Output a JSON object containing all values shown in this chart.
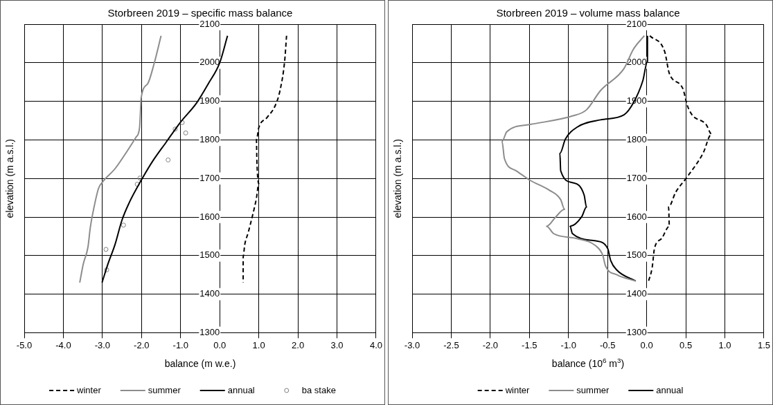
{
  "chart_data": [
    {
      "type": "line",
      "title": "Storbreen 2019 – specific mass balance",
      "xlabel": "balance (m w.e.)",
      "ylabel": "elevation (m a.s.l.)",
      "xlim": [
        -5,
        4
      ],
      "xticks": [
        {
          "value": -5,
          "label": "-5.0"
        },
        {
          "value": -4,
          "label": "-4.0"
        },
        {
          "value": -3,
          "label": "-3.0"
        },
        {
          "value": -2,
          "label": "-2.0"
        },
        {
          "value": -1,
          "label": "-1.0"
        },
        {
          "value": 0,
          "label": "0.0"
        },
        {
          "value": 1,
          "label": "1.0"
        },
        {
          "value": 2,
          "label": "2.0"
        },
        {
          "value": 3,
          "label": "3.0"
        },
        {
          "value": 4,
          "label": "4.0"
        }
      ],
      "ylim": [
        1300,
        2100
      ],
      "yticks": [
        1300,
        1400,
        1500,
        1600,
        1700,
        1800,
        1900,
        2000,
        2100
      ],
      "grid": true,
      "legend": "bottom",
      "marker": "none",
      "series": [
        {
          "name": "winter",
          "color": "#000000",
          "line_style": "dashed",
          "x": [
            1.71,
            1.66,
            1.54,
            1.42,
            1.21,
            1.0,
            0.94,
            0.95,
            1.0,
            0.94,
            0.84,
            0.73,
            0.64,
            0.6,
            0.6
          ],
          "values": [
            2070,
            2003,
            1927,
            1889,
            1858,
            1832,
            1801,
            1750,
            1687,
            1649,
            1604,
            1560,
            1528,
            1497,
            1430
          ]
        },
        {
          "name": "summer",
          "color": "#8c8c8c",
          "line_style": "solid",
          "x": [
            -1.5,
            -1.68,
            -1.84,
            -2.01,
            -2.02,
            -2.05,
            -2.14,
            -2.38,
            -2.68,
            -2.98,
            -3.1,
            -3.22,
            -3.31,
            -3.37,
            -3.49,
            -3.58
          ],
          "values": [
            2070,
            1997,
            1946,
            1908,
            1889,
            1832,
            1807,
            1769,
            1725,
            1693,
            1674,
            1623,
            1573,
            1522,
            1478,
            1430
          ]
        },
        {
          "name": "annual",
          "color": "#000000",
          "line_style": "solid",
          "x": [
            0.2,
            0.0,
            -0.29,
            -0.59,
            -1.01,
            -1.37,
            -1.72,
            -2.02,
            -2.32,
            -2.5,
            -2.68,
            -2.86,
            -3.01
          ],
          "values": [
            2070,
            2000,
            1946,
            1896,
            1845,
            1794,
            1744,
            1693,
            1636,
            1592,
            1528,
            1478,
            1430
          ]
        },
        {
          "name": "ba stake",
          "type": "scatter",
          "marker": "circle",
          "color": "#808080",
          "x": [
            -0.96,
            -1.14,
            -0.87,
            -1.32,
            -2.04,
            -2.11,
            -2.46,
            -2.91,
            -2.89
          ],
          "values": [
            1845,
            1828,
            1818,
            1748,
            1701,
            1685,
            1579,
            1516,
            1463
          ]
        }
      ]
    },
    {
      "type": "line",
      "title": "Storbreen 2019 – volume mass balance",
      "xlabel": "balance (10$^{6}$ m$^{3}$)",
      "ylabel": "elevation (m a.s.l.)",
      "xlim": [
        -3,
        1.5
      ],
      "xticks": [
        {
          "value": -3,
          "label": "-3.0"
        },
        {
          "value": -2.5,
          "label": "-2.5"
        },
        {
          "value": -2,
          "label": "-2.0"
        },
        {
          "value": -1.5,
          "label": "-1.5"
        },
        {
          "value": -1,
          "label": "-1.0"
        },
        {
          "value": -0.5,
          "label": "-0.5"
        },
        {
          "value": 0,
          "label": "0.0"
        },
        {
          "value": 0.5,
          "label": "0.5"
        },
        {
          "value": 1,
          "label": "1.0"
        },
        {
          "value": 1.5,
          "label": "1.5"
        }
      ],
      "ylim": [
        1300,
        2100
      ],
      "yticks": [
        1300,
        1400,
        1500,
        1600,
        1700,
        1800,
        1900,
        2000,
        2100
      ],
      "grid": true,
      "legend": "bottom",
      "marker": "none",
      "series": [
        {
          "name": "winter",
          "color": "#000000",
          "line_style": "dashed",
          "x": [
            0.04,
            0.23,
            0.29,
            0.46,
            0.52,
            0.58,
            0.76,
            0.83,
            0.72,
            0.51,
            0.37,
            0.28,
            0.29,
            0.19,
            0.1,
            0.07,
            0.02
          ],
          "values": [
            2070,
            2029,
            1972,
            1934,
            1889,
            1865,
            1840,
            1815,
            1765,
            1702,
            1664,
            1626,
            1576,
            1544,
            1519,
            1469,
            1431
          ]
        },
        {
          "name": "summer",
          "color": "#8c8c8c",
          "line_style": "solid",
          "x": [
            -0.03,
            -0.17,
            -0.29,
            -0.59,
            -0.77,
            -0.95,
            -1.49,
            -1.79,
            -1.85,
            -1.82,
            -1.67,
            -1.49,
            -1.25,
            -1.1,
            -1.05,
            -1.16,
            -1.28,
            -1.19,
            -0.89,
            -0.65,
            -0.56,
            -0.53,
            -0.38,
            -0.14
          ],
          "values": [
            2070,
            2035,
            1985,
            1928,
            1878,
            1862,
            1840,
            1821,
            1796,
            1752,
            1720,
            1695,
            1670,
            1645,
            1620,
            1601,
            1576,
            1557,
            1544,
            1525,
            1500,
            1475,
            1450,
            1434
          ]
        },
        {
          "name": "annual",
          "color": "#000000",
          "line_style": "solid",
          "x": [
            0.01,
            0.01,
            -0.05,
            -0.17,
            -0.29,
            -0.59,
            -0.89,
            -1.04,
            -1.11,
            -1.1,
            -0.95,
            -0.8,
            -0.77,
            -0.83,
            -0.98,
            -0.95,
            -0.65,
            -0.5,
            -0.46,
            -0.38,
            -0.14
          ],
          "values": [
            2070,
            2003,
            1953,
            1896,
            1865,
            1852,
            1833,
            1802,
            1765,
            1720,
            1689,
            1657,
            1626,
            1601,
            1576,
            1557,
            1538,
            1519,
            1487,
            1462,
            1434
          ]
        }
      ]
    }
  ]
}
